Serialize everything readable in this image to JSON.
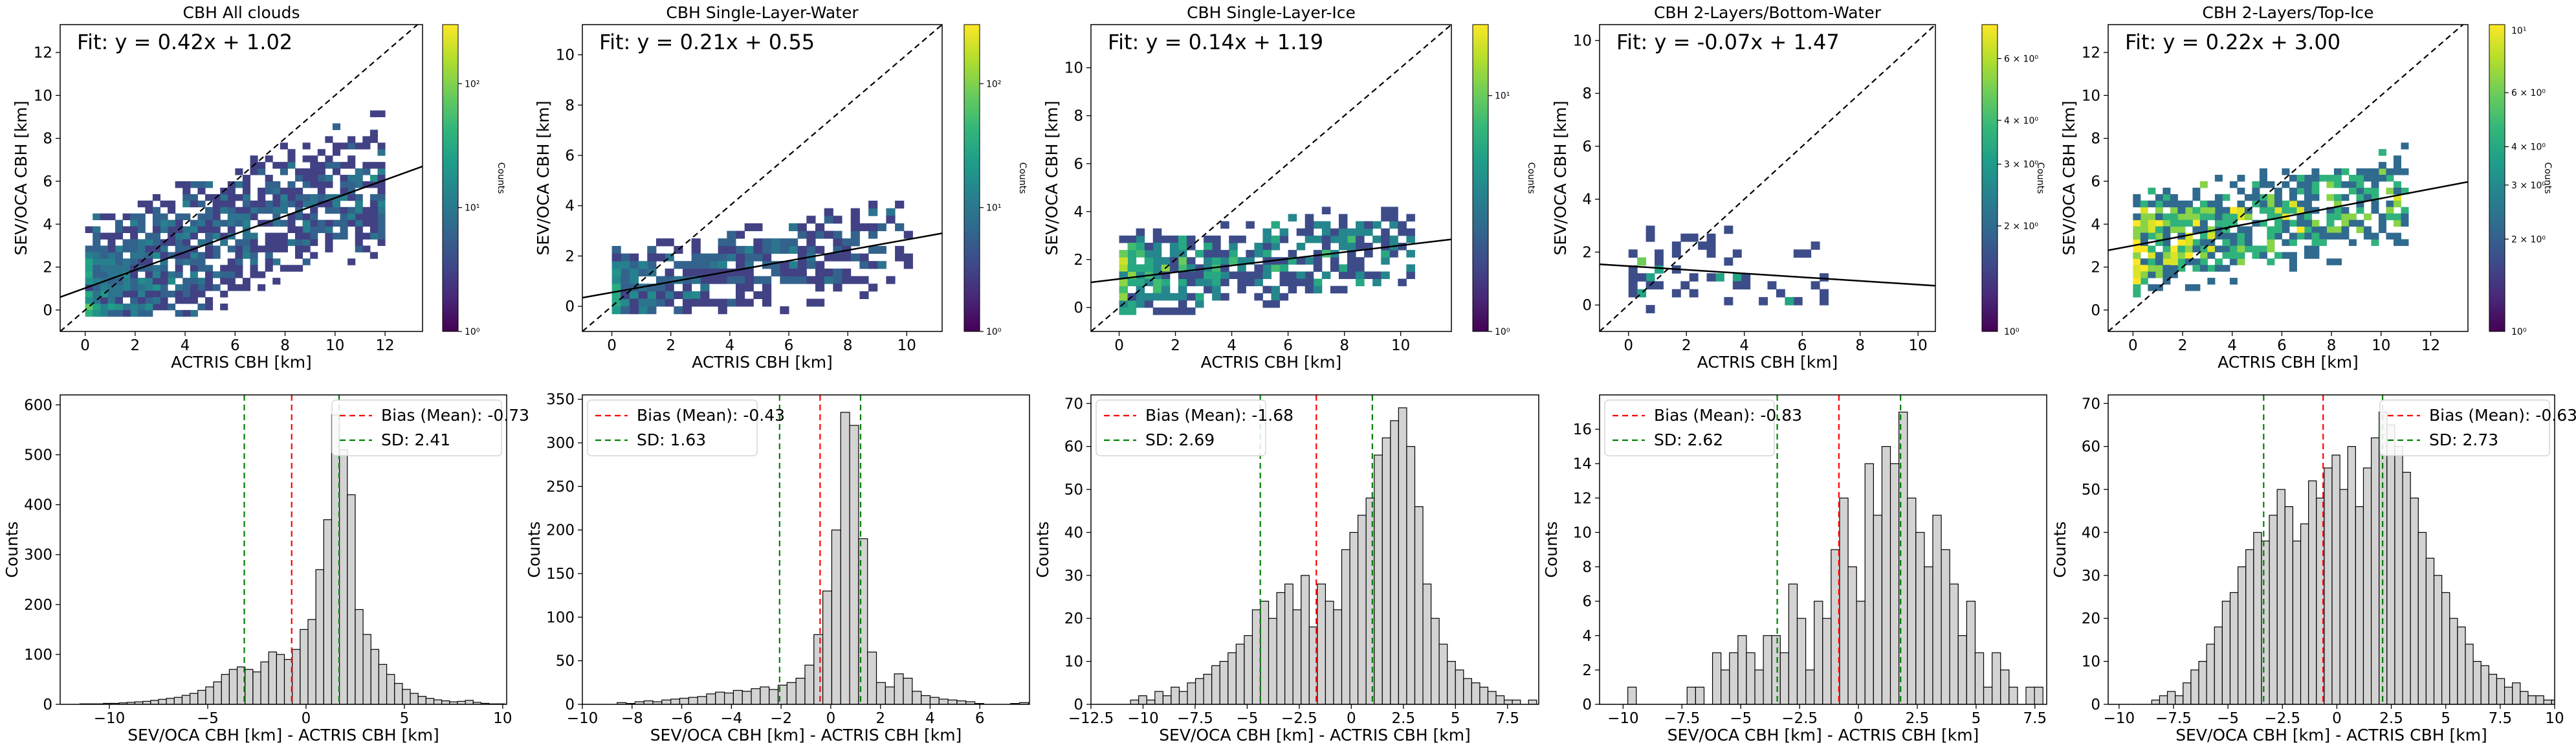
{
  "figure": {
    "colors": {
      "fit_line": "#000000",
      "one_to_one": "#000000",
      "bias_line": "#ff0000",
      "sd_line": "#008000",
      "hist_fill": "#d3d3d3",
      "hist_edge": "#000000"
    },
    "colormap": "viridis"
  },
  "chart_data": [
    {
      "type": "heatmap",
      "title": "CBH All clouds",
      "xlabel": "ACTRIS CBH [km]",
      "ylabel": "SEV/OCA CBH [km]",
      "xlim": [
        -1,
        13.5
      ],
      "ylim": [
        -1,
        13.3
      ],
      "xticks": [
        0,
        2,
        4,
        6,
        8,
        10,
        12
      ],
      "yticks": [
        0,
        2,
        4,
        6,
        8,
        10,
        12
      ],
      "fit_text": "Fit: y = 0.42x + 1.02",
      "fit": {
        "slope": 0.42,
        "intercept": 1.02
      },
      "one_to_one_line": true,
      "colorbar": {
        "label": "Counts",
        "scale": "log",
        "vmin": 1,
        "vmax": 300,
        "ticks": [
          1,
          10,
          100
        ],
        "tick_labels": [
          "10⁰",
          "10¹",
          "10²"
        ]
      }
    },
    {
      "type": "heatmap",
      "title": "CBH Single-Layer-Water",
      "xlabel": "ACTRIS CBH [km]",
      "ylabel": "SEV/OCA CBH [km]",
      "xlim": [
        -1,
        11.2
      ],
      "ylim": [
        -1,
        11.2
      ],
      "xticks": [
        0,
        2,
        4,
        6,
        8,
        10
      ],
      "yticks": [
        0,
        2,
        4,
        6,
        8,
        10
      ],
      "fit_text": "Fit: y = 0.21x + 0.55",
      "fit": {
        "slope": 0.21,
        "intercept": 0.55
      },
      "one_to_one_line": true,
      "colorbar": {
        "label": "Counts",
        "scale": "log",
        "vmin": 1,
        "vmax": 300,
        "ticks": [
          1,
          10,
          100
        ],
        "tick_labels": [
          "10⁰",
          "10¹",
          "10²"
        ]
      }
    },
    {
      "type": "heatmap",
      "title": "CBH Single-Layer-Ice",
      "xlabel": "ACTRIS CBH [km]",
      "ylabel": "SEV/OCA CBH [km]",
      "xlim": [
        -1,
        11.8
      ],
      "ylim": [
        -1,
        11.8
      ],
      "xticks": [
        0,
        2,
        4,
        6,
        8,
        10
      ],
      "yticks": [
        0,
        2,
        4,
        6,
        8,
        10
      ],
      "fit_text": "Fit: y = 0.14x + 1.19",
      "fit": {
        "slope": 0.14,
        "intercept": 1.19
      },
      "one_to_one_line": true,
      "colorbar": {
        "label": "Counts",
        "scale": "log",
        "vmin": 1,
        "vmax": 20,
        "ticks": [
          1,
          10
        ],
        "tick_labels": [
          "10⁰",
          "10¹"
        ]
      }
    },
    {
      "type": "heatmap",
      "title": "CBH 2-Layers/Bottom-Water",
      "xlabel": "ACTRIS CBH [km]",
      "ylabel": "SEV/OCA CBH [km]",
      "xlim": [
        -1,
        10.6
      ],
      "ylim": [
        -1,
        10.6
      ],
      "xticks": [
        0,
        2,
        4,
        6,
        8,
        10
      ],
      "yticks": [
        0,
        2,
        4,
        6,
        8,
        10
      ],
      "fit_text": "Fit: y = -0.07x + 1.47",
      "fit": {
        "slope": -0.07,
        "intercept": 1.47
      },
      "one_to_one_line": true,
      "colorbar": {
        "label": "Counts",
        "scale": "log",
        "vmin": 1,
        "vmax": 7.5,
        "ticks": [
          2,
          3,
          4,
          6
        ],
        "tick_labels": [
          "2 × 10⁰",
          "3 × 10⁰",
          "4 × 10⁰",
          "6 × 10⁰"
        ],
        "bottom_label": "10⁰"
      }
    },
    {
      "type": "heatmap",
      "title": "CBH 2-Layers/Top-Ice",
      "xlabel": "ACTRIS CBH [km]",
      "ylabel": "SEV/OCA CBH [km]",
      "xlim": [
        -1,
        13.5
      ],
      "ylim": [
        -1,
        13.3
      ],
      "xticks": [
        0,
        2,
        4,
        6,
        8,
        10,
        12
      ],
      "yticks": [
        0,
        2,
        4,
        6,
        8,
        10,
        12
      ],
      "fit_text": "Fit: y = 0.22x + 3.00",
      "fit": {
        "slope": 0.22,
        "intercept": 3.0
      },
      "one_to_one_line": true,
      "colorbar": {
        "label": "Counts",
        "scale": "log",
        "vmin": 1,
        "vmax": 10,
        "ticks": [
          2,
          3,
          4,
          6
        ],
        "tick_labels": [
          "2 × 10⁰",
          "3 × 10⁰",
          "4 × 10⁰",
          "6 × 10⁰"
        ],
        "top_label": "10¹",
        "bottom_label": "10⁰"
      }
    },
    {
      "type": "bar",
      "subtype": "histogram",
      "xlabel": "SEV/OCA CBH [km] - ACTRIS CBH [km]",
      "ylabel": "Counts",
      "xlim": [
        -12.5,
        10.2
      ],
      "ylim": [
        0,
        620
      ],
      "xticks": [
        -10,
        -5,
        0,
        5,
        10
      ],
      "yticks": [
        0,
        100,
        200,
        300,
        400,
        500,
        600
      ],
      "bin_start": -11.5,
      "bin_width": 0.4,
      "counts": [
        1,
        1,
        1,
        2,
        2,
        3,
        4,
        5,
        6,
        8,
        10,
        12,
        14,
        18,
        22,
        28,
        35,
        45,
        60,
        70,
        75,
        70,
        65,
        85,
        105,
        100,
        90,
        110,
        150,
        170,
        270,
        370,
        580,
        510,
        420,
        190,
        140,
        110,
        80,
        60,
        42,
        30,
        22,
        16,
        12,
        9,
        7,
        5,
        6,
        8,
        4,
        2,
        1,
        1
      ],
      "legend": {
        "bias_label": "Bias (Mean): -0.73",
        "sd_label": "SD: 2.41",
        "position": "top-right"
      },
      "bias": -0.73,
      "sd": 2.41
    },
    {
      "type": "bar",
      "subtype": "histogram",
      "xlabel": "SEV/OCA CBH [km] - ACTRIS CBH [km]",
      "ylabel": "Counts",
      "xlim": [
        -10,
        8
      ],
      "ylim": [
        0,
        355
      ],
      "xticks": [
        -10,
        -8,
        -6,
        -4,
        -2,
        0,
        2,
        4,
        6
      ],
      "yticks": [
        0,
        50,
        100,
        150,
        200,
        250,
        300,
        350
      ],
      "bin_start": -8.6,
      "bin_width": 0.36,
      "counts": [
        2,
        1,
        3,
        4,
        3,
        5,
        6,
        7,
        8,
        9,
        12,
        14,
        13,
        16,
        15,
        18,
        20,
        17,
        22,
        25,
        30,
        45,
        80,
        130,
        200,
        335,
        320,
        190,
        60,
        25,
        20,
        35,
        30,
        15,
        10,
        8,
        6,
        5,
        4,
        3,
        1,
        0,
        0,
        0,
        1,
        2,
        0,
        0,
        1
      ],
      "legend": {
        "bias_label": "Bias (Mean): -0.43",
        "sd_label": "SD: 1.63",
        "position": "top-left"
      },
      "bias": -0.43,
      "sd": 1.63
    },
    {
      "type": "bar",
      "subtype": "histogram",
      "xlabel": "SEV/OCA CBH [km] - ACTRIS CBH [km]",
      "ylabel": "Counts",
      "xlim": [
        -12.5,
        9.0
      ],
      "ylim": [
        0,
        72
      ],
      "xticks": [
        -12.5,
        -10.0,
        -7.5,
        -5.0,
        -2.5,
        0.0,
        2.5,
        5.0,
        7.5
      ],
      "yticks": [
        0,
        10,
        20,
        30,
        40,
        50,
        60,
        70
      ],
      "bin_start": -10.6,
      "bin_width": 0.39,
      "counts": [
        1,
        2,
        1,
        3,
        2,
        4,
        3,
        5,
        6,
        7,
        9,
        10,
        12,
        14,
        16,
        22,
        24,
        20,
        26,
        28,
        22,
        30,
        18,
        28,
        24,
        22,
        36,
        40,
        44,
        48,
        58,
        62,
        66,
        69,
        60,
        46,
        28,
        20,
        14,
        10,
        8,
        6,
        5,
        4,
        3,
        2,
        1,
        1,
        0,
        1,
        0,
        1
      ],
      "legend": {
        "bias_label": "Bias (Mean): -1.68",
        "sd_label": "SD: 2.69",
        "position": "top-left"
      },
      "bias": -1.68,
      "sd": 2.69
    },
    {
      "type": "bar",
      "subtype": "histogram",
      "xlabel": "SEV/OCA CBH [km] - ACTRIS CBH [km]",
      "ylabel": "Counts",
      "xlim": [
        -11,
        8
      ],
      "ylim": [
        0,
        18
      ],
      "xticks": [
        -10.0,
        -7.5,
        -5.0,
        -2.5,
        0.0,
        2.5,
        5.0,
        7.5
      ],
      "yticks": [
        0,
        2,
        4,
        6,
        8,
        10,
        12,
        14,
        16
      ],
      "bin_start": -9.8,
      "bin_width": 0.36,
      "counts": [
        1,
        0,
        0,
        0,
        0,
        0,
        0,
        1,
        1,
        0,
        3,
        2,
        3,
        4,
        3,
        2,
        4,
        4,
        3,
        7,
        5,
        2,
        6,
        5,
        9,
        12,
        8,
        6,
        14,
        11,
        15,
        14,
        17,
        12,
        10,
        8,
        11,
        9,
        7,
        4,
        6,
        3,
        1,
        3,
        2,
        1,
        0,
        1,
        1,
        0,
        1,
        1
      ],
      "legend": {
        "bias_label": "Bias (Mean): -0.83",
        "sd_label": "SD: 2.62",
        "position": "top-left"
      },
      "bias": -0.83,
      "sd": 2.62
    },
    {
      "type": "bar",
      "subtype": "histogram",
      "xlabel": "SEV/OCA CBH [km] - ACTRIS CBH [km]",
      "ylabel": "Counts",
      "xlim": [
        -10.5,
        10
      ],
      "ylim": [
        0,
        72
      ],
      "xticks": [
        -10.0,
        -7.5,
        -5.0,
        -2.5,
        0.0,
        2.5,
        5.0,
        7.5,
        10.0
      ],
      "yticks": [
        0,
        10,
        20,
        30,
        40,
        50,
        60,
        70
      ],
      "bin_start": -8.5,
      "bin_width": 0.36,
      "counts": [
        1,
        2,
        3,
        2,
        5,
        8,
        10,
        14,
        18,
        24,
        26,
        32,
        36,
        40,
        38,
        44,
        50,
        46,
        38,
        42,
        52,
        48,
        55,
        58,
        50,
        60,
        46,
        55,
        62,
        68,
        65,
        60,
        54,
        48,
        40,
        34,
        30,
        26,
        20,
        18,
        14,
        10,
        9,
        7,
        6,
        4,
        5,
        3,
        2,
        2,
        1,
        1
      ],
      "legend": {
        "bias_label": "Bias (Mean): -0.63",
        "sd_label": "SD: 2.73",
        "position": "top-right"
      },
      "bias": -0.63,
      "sd": 2.73
    }
  ]
}
